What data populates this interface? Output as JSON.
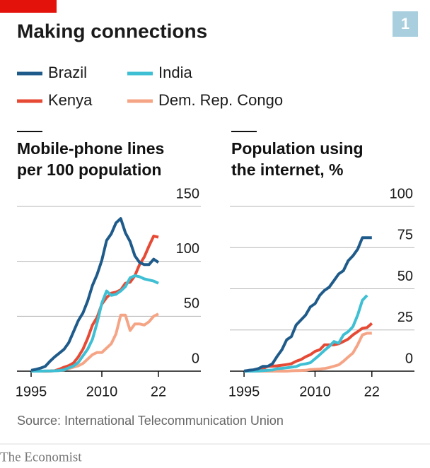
{
  "header": {
    "title": "Making connections",
    "badge": "1"
  },
  "legend": {
    "position": "top"
  },
  "chart_data": [
    {
      "type": "line",
      "title": "Mobile-phone lines\nper 100 population",
      "x": [
        1995,
        1996,
        1997,
        1998,
        1999,
        2000,
        2001,
        2002,
        2003,
        2004,
        2005,
        2006,
        2007,
        2008,
        2009,
        2010,
        2011,
        2012,
        2013,
        2014,
        2015,
        2016,
        2017,
        2018,
        2019,
        2020,
        2021,
        2022
      ],
      "xlim": [
        1992,
        2031
      ],
      "xticks": [
        1995,
        2010,
        {
          "value": 2022,
          "label": "22"
        }
      ],
      "ylim": [
        0,
        150
      ],
      "yticks": [
        0,
        50,
        100,
        150
      ],
      "grid": true,
      "series": [
        {
          "name": "Brazil",
          "color": "#1f5b8a",
          "values": [
            0.8,
            1.6,
            2.8,
            4.4,
            9,
            13,
            16.5,
            20,
            26,
            36,
            46,
            53,
            64,
            78,
            88,
            101,
            119,
            125,
            135,
            139,
            126,
            118,
            105,
            99,
            97,
            97,
            102,
            99
          ]
        },
        {
          "name": "India",
          "color": "#3ebfd3",
          "values": [
            0,
            0,
            0,
            0.1,
            0.2,
            0.3,
            0.6,
            1.2,
            3,
            4.7,
            8,
            14,
            20,
            29,
            44,
            62,
            73,
            69,
            70,
            73,
            77,
            85,
            87,
            86,
            84,
            83,
            82,
            80
          ]
        },
        {
          "name": "Kenya",
          "color": "#e64a35",
          "values": [
            0,
            0,
            0,
            0,
            0.1,
            0.4,
            1.8,
            3.6,
            5,
            7.5,
            13,
            20,
            30,
            42,
            49,
            61,
            67,
            71,
            72,
            74,
            80,
            81,
            87,
            97,
            104,
            114,
            123,
            122
          ]
        },
        {
          "name": "Dem. Rep. Congo",
          "color": "#f5a586",
          "values": [
            0,
            0,
            0,
            0,
            0,
            0.3,
            0.6,
            1.1,
            2.4,
            3.7,
            4.8,
            7,
            11,
            15,
            17,
            17,
            21,
            25,
            34,
            51,
            51,
            37,
            43,
            43,
            42,
            45,
            50,
            52
          ]
        }
      ]
    },
    {
      "type": "line",
      "title": "Population using\nthe internet, %",
      "x": [
        1995,
        1996,
        1997,
        1998,
        1999,
        2000,
        2001,
        2002,
        2003,
        2004,
        2005,
        2006,
        2007,
        2008,
        2009,
        2010,
        2011,
        2012,
        2013,
        2014,
        2015,
        2016,
        2017,
        2018,
        2019,
        2020,
        2021,
        2022
      ],
      "xlim": [
        1992,
        2031
      ],
      "xticks": [
        1995,
        2010,
        {
          "value": 2022,
          "label": "22"
        }
      ],
      "ylim": [
        0,
        100
      ],
      "yticks": [
        0,
        25,
        50,
        75,
        100
      ],
      "grid": true,
      "series": [
        {
          "color": "#1f5b8a",
          "values": [
            0.1,
            0.5,
            0.8,
            1.5,
            2.9,
            2.9,
            4.5,
            9,
            13,
            19,
            21,
            28,
            31,
            34,
            39,
            41,
            46,
            49,
            51,
            55,
            59,
            61,
            67,
            70,
            74,
            81,
            81,
            81
          ]
        },
        {
          "color": "#3ebfd3",
          "values": [
            0,
            0,
            0,
            0.1,
            0.3,
            0.5,
            0.7,
            1.5,
            1.7,
            2,
            2.4,
            2.8,
            4,
            4.4,
            5.1,
            7.5,
            10,
            12.6,
            15,
            18,
            17,
            22,
            24,
            27,
            34,
            43,
            46,
            null
          ]
        },
        {
          "color": "#e64a35",
          "values": [
            0,
            0.1,
            0.2,
            0.5,
            1.5,
            3,
            3,
            3.2,
            3.6,
            4,
            4.5,
            6,
            7,
            8.7,
            10,
            12,
            13,
            16,
            16,
            16,
            16.6,
            18,
            19.5,
            22,
            24,
            26,
            26.5,
            29
          ]
        },
        {
          "color": "#f5a586",
          "values": [
            0,
            0,
            0,
            0,
            0,
            0,
            0,
            0,
            0,
            0,
            0.2,
            0.3,
            0.4,
            0.5,
            1,
            1.1,
            1.3,
            1.6,
            2.2,
            3,
            3.8,
            6,
            8.6,
            11,
            16,
            22,
            23,
            23
          ]
        }
      ]
    }
  ],
  "footer": {
    "source": "Source: International Telecommunication Union",
    "brand": "The Economist"
  }
}
